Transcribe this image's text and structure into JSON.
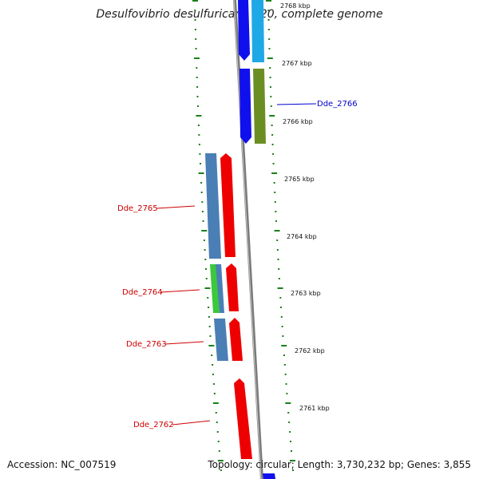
{
  "title": "Desulfovibrio desulfuricans G20, complete genome",
  "footer": {
    "accession": "Accession: NC_007519",
    "summary": "Topology: circular; Length: 3,730,232 bp; Genes: 3,855"
  },
  "colors": {
    "backbone": "#808080",
    "ruler_ticks": "#1a7f1a",
    "label_forward": "#cc0000",
    "label_reverse": "#0000cc"
  },
  "ruler_labels": [
    "2768 kbp",
    "2767 kbp",
    "2766 kbp",
    "2765 kbp",
    "2764 kbp",
    "2763 kbp",
    "2762 kbp",
    "2761 kbp"
  ],
  "genes": [
    {
      "label": "Dde_2766",
      "color": "#1010ee"
    },
    {
      "label": "Dde_2765",
      "color": "#ee0000"
    },
    {
      "label": "Dde_2764",
      "color": "#ee0000"
    },
    {
      "label": "Dde_2763",
      "color": "#ee0000"
    },
    {
      "label": "Dde_2762",
      "color": "#ee0000"
    }
  ]
}
